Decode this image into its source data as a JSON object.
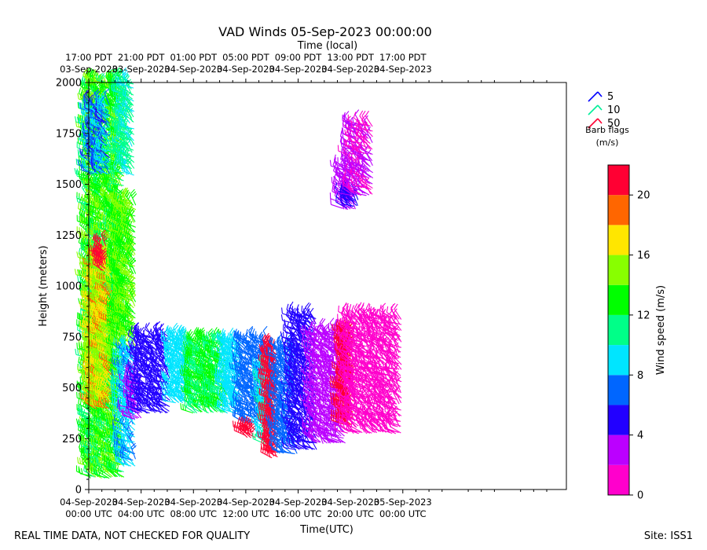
{
  "chart_data": {
    "type": "wind-barbs",
    "title": "VAD Winds 05-Sep-2023 00:00:00",
    "top_axis_label": "Time (local)",
    "xlabel": "Time(UTC)",
    "ylabel": "Height (meters)",
    "xlim_hours": [
      0,
      36.5
    ],
    "ylim": [
      0,
      2000
    ],
    "y_ticks": [
      0,
      250,
      500,
      750,
      1000,
      1250,
      1500,
      1750,
      2000
    ],
    "x_ticks_utc": [
      {
        "h": 0,
        "line1": "04-Sep-2023",
        "line2": "00:00 UTC"
      },
      {
        "h": 4,
        "line1": "04-Sep-2023",
        "line2": "04:00 UTC"
      },
      {
        "h": 8,
        "line1": "04-Sep-2023",
        "line2": "08:00 UTC"
      },
      {
        "h": 12,
        "line1": "04-Sep-2023",
        "line2": "12:00 UTC"
      },
      {
        "h": 16,
        "line1": "04-Sep-2023",
        "line2": "16:00 UTC"
      },
      {
        "h": 20,
        "line1": "04-Sep-2023",
        "line2": "20:00 UTC"
      },
      {
        "h": 24,
        "line1": "05-Sep-2023",
        "line2": "00:00 UTC"
      }
    ],
    "x_ticks_local": [
      {
        "h": 0,
        "line1": "17:00 PDT",
        "line2": "03-Sep-2023"
      },
      {
        "h": 4,
        "line1": "21:00 PDT",
        "line2": "03-Sep-2023"
      },
      {
        "h": 8,
        "line1": "01:00 PDT",
        "line2": "04-Sep-2023"
      },
      {
        "h": 12,
        "line1": "05:00 PDT",
        "line2": "04-Sep-2023"
      },
      {
        "h": 16,
        "line1": "09:00 PDT",
        "line2": "04-Sep-2023"
      },
      {
        "h": 20,
        "line1": "13:00 PDT",
        "line2": "04-Sep-2023"
      },
      {
        "h": 24,
        "line1": "17:00 PDT",
        "line2": "04-Sep-2023"
      }
    ],
    "barb_legend": {
      "items": [
        {
          "value": "5",
          "color": "#0000ff"
        },
        {
          "value": "10",
          "color": "#00ee99"
        },
        {
          "value": "50",
          "color": "#ff0033"
        }
      ],
      "title_line1": "Barb flags",
      "title_line2": "(m/s)"
    },
    "colorbar": {
      "label": "Wind speed (m/s)",
      "ticks": [
        0,
        4,
        8,
        12,
        16,
        20
      ],
      "min": 0,
      "max": 22,
      "bands": [
        {
          "from": 0,
          "to": 2,
          "color": "#ff00cc"
        },
        {
          "from": 2,
          "to": 4,
          "color": "#bb00ff"
        },
        {
          "from": 4,
          "to": 6,
          "color": "#2200ff"
        },
        {
          "from": 6,
          "to": 8,
          "color": "#0066ff"
        },
        {
          "from": 8,
          "to": 10,
          "color": "#00e5ff"
        },
        {
          "from": 10,
          "to": 12,
          "color": "#00ff88"
        },
        {
          "from": 12,
          "to": 14,
          "color": "#00ff00"
        },
        {
          "from": 14,
          "to": 16,
          "color": "#88ff00"
        },
        {
          "from": 16,
          "to": 18,
          "color": "#ffe600"
        },
        {
          "from": 18,
          "to": 20,
          "color": "#ff6600"
        },
        {
          "from": 20,
          "to": 22,
          "color": "#ff0033"
        }
      ]
    },
    "barb_clusters": [
      {
        "h0": 0.0,
        "h1": 2.7,
        "z0": 60,
        "z1": 2000,
        "speed": [
          11,
          15
        ]
      },
      {
        "h0": 0.2,
        "h1": 1.6,
        "z0": 1550,
        "z1": 1900,
        "speed": [
          5,
          10
        ]
      },
      {
        "h0": 0.3,
        "h1": 1.8,
        "z0": 400,
        "z1": 1150,
        "speed": [
          14,
          19
        ]
      },
      {
        "h0": 1.0,
        "h1": 1.3,
        "z0": 1080,
        "z1": 1200,
        "speed": [
          20,
          22
        ]
      },
      {
        "h0": 2.6,
        "h1": 3.5,
        "z0": 1550,
        "z1": 2000,
        "speed": [
          9,
          12
        ]
      },
      {
        "h0": 2.3,
        "h1": 3.6,
        "z0": 700,
        "z1": 1400,
        "speed": [
          12,
          16
        ]
      },
      {
        "h0": 2.7,
        "h1": 3.6,
        "z0": 120,
        "z1": 700,
        "speed": [
          7,
          10
        ]
      },
      {
        "h0": 3.3,
        "h1": 4.0,
        "z0": 350,
        "z1": 550,
        "speed": [
          2,
          4
        ]
      },
      {
        "h0": 3.8,
        "h1": 6.3,
        "z0": 380,
        "z1": 770,
        "speed": [
          4,
          6
        ]
      },
      {
        "h0": 6.5,
        "h1": 8.0,
        "z0": 430,
        "z1": 740,
        "speed": [
          8,
          10
        ]
      },
      {
        "h0": 8.0,
        "h1": 10.6,
        "z0": 380,
        "z1": 740,
        "speed": [
          10,
          14
        ]
      },
      {
        "h0": 10.6,
        "h1": 11.8,
        "z0": 380,
        "z1": 740,
        "speed": [
          8,
          10
        ]
      },
      {
        "h0": 11.8,
        "h1": 13.8,
        "z0": 330,
        "z1": 740,
        "speed": [
          6,
          8
        ]
      },
      {
        "h0": 12.0,
        "h1": 12.8,
        "z0": 260,
        "z1": 300,
        "speed": [
          20,
          22
        ]
      },
      {
        "h0": 13.4,
        "h1": 14.1,
        "z0": 230,
        "z1": 600,
        "speed": [
          8,
          11
        ]
      },
      {
        "h0": 13.9,
        "h1": 14.5,
        "z0": 160,
        "z1": 700,
        "speed": [
          20,
          22
        ]
      },
      {
        "h0": 14.5,
        "h1": 16.0,
        "z0": 180,
        "z1": 700,
        "speed": [
          6,
          8
        ]
      },
      {
        "h0": 15.7,
        "h1": 17.4,
        "z0": 200,
        "z1": 850,
        "speed": [
          4,
          6
        ]
      },
      {
        "h0": 17.2,
        "h1": 19.6,
        "z0": 230,
        "z1": 780,
        "speed": [
          2,
          4
        ]
      },
      {
        "h0": 19.5,
        "h1": 20.2,
        "z0": 320,
        "z1": 780,
        "speed": [
          20,
          22
        ]
      },
      {
        "h0": 19.8,
        "h1": 23.9,
        "z0": 280,
        "z1": 840,
        "speed": [
          0,
          2
        ]
      },
      {
        "h0": 19.4,
        "h1": 20.4,
        "z0": 1380,
        "z1": 1600,
        "speed": [
          2,
          4
        ]
      },
      {
        "h0": 19.6,
        "h1": 20.7,
        "z0": 1390,
        "z1": 1470,
        "speed": [
          4,
          6
        ]
      },
      {
        "h0": 20.0,
        "h1": 21.8,
        "z0": 1450,
        "z1": 1800,
        "speed": [
          1,
          3
        ]
      }
    ]
  },
  "footer": {
    "left": "REAL TIME DATA, NOT CHECKED FOR QUALITY",
    "right": "Site: ISS1"
  }
}
